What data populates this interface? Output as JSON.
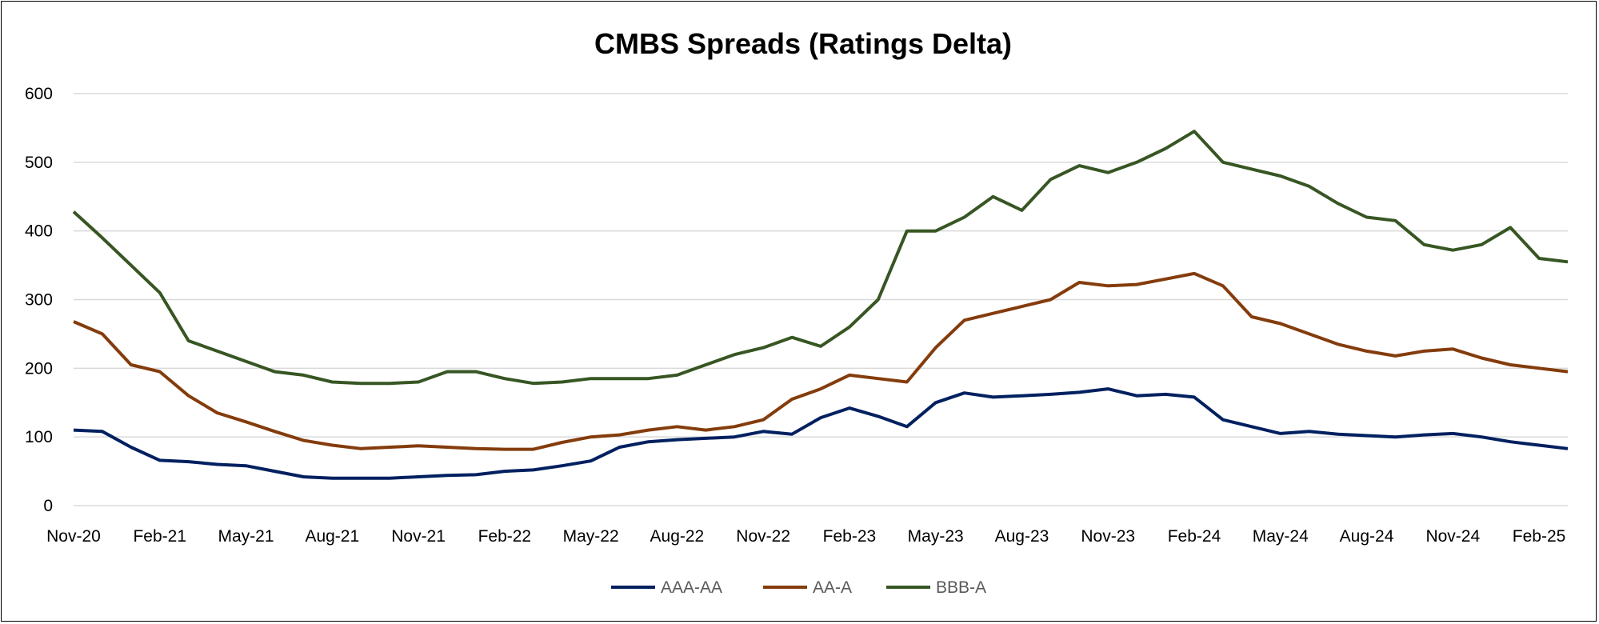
{
  "chart_data": {
    "type": "line",
    "title": "CMBS Spreads (Ratings Delta)",
    "xlabel": "",
    "ylabel": "",
    "ylim": [
      0,
      600
    ],
    "yticks": [
      0,
      100,
      200,
      300,
      400,
      500,
      600
    ],
    "x_ticks": [
      "Nov-20",
      "Feb-21",
      "May-21",
      "Aug-21",
      "Nov-21",
      "Feb-22",
      "May-22",
      "Aug-22",
      "Nov-22",
      "Feb-23",
      "May-23",
      "Aug-23",
      "Nov-23",
      "Feb-24",
      "May-24",
      "Aug-24",
      "Nov-24",
      "Feb-25"
    ],
    "grid": "horizontal",
    "legend_position": "bottom",
    "x": [
      "Nov-20",
      "Dec-20",
      "Jan-21",
      "Feb-21",
      "Mar-21",
      "Apr-21",
      "May-21",
      "Jun-21",
      "Jul-21",
      "Aug-21",
      "Sep-21",
      "Oct-21",
      "Nov-21",
      "Dec-21",
      "Jan-22",
      "Feb-22",
      "Mar-22",
      "Apr-22",
      "May-22",
      "Jun-22",
      "Jul-22",
      "Aug-22",
      "Sep-22",
      "Oct-22",
      "Nov-22",
      "Dec-22",
      "Jan-23",
      "Feb-23",
      "Mar-23",
      "Apr-23",
      "May-23",
      "Jun-23",
      "Jul-23",
      "Aug-23",
      "Sep-23",
      "Oct-23",
      "Nov-23",
      "Dec-23",
      "Jan-24",
      "Feb-24",
      "Mar-24",
      "Apr-24",
      "May-24",
      "Jun-24",
      "Jul-24",
      "Aug-24",
      "Sep-24",
      "Oct-24",
      "Nov-24",
      "Dec-24",
      "Jan-25",
      "Feb-25",
      "Mar-25"
    ],
    "series": [
      {
        "name": "AAA-AA",
        "color": "#002060",
        "values": [
          110,
          108,
          85,
          66,
          64,
          60,
          58,
          50,
          42,
          40,
          40,
          40,
          42,
          44,
          45,
          50,
          52,
          58,
          65,
          85,
          93,
          96,
          98,
          100,
          108,
          104,
          128,
          142,
          130,
          115,
          150,
          164,
          158,
          160,
          162,
          165,
          170,
          160,
          162,
          158,
          125,
          115,
          105,
          108,
          104,
          102,
          100,
          103,
          105,
          100,
          93,
          88,
          83
        ]
      },
      {
        "name": "AA-A",
        "color": "#843C0C",
        "values": [
          268,
          250,
          205,
          195,
          160,
          135,
          122,
          108,
          95,
          88,
          83,
          85,
          87,
          85,
          83,
          82,
          82,
          92,
          100,
          103,
          110,
          115,
          110,
          115,
          125,
          155,
          170,
          190,
          185,
          180,
          230,
          270,
          280,
          290,
          300,
          325,
          320,
          322,
          330,
          338,
          320,
          275,
          265,
          250,
          235,
          225,
          218,
          225,
          228,
          215,
          205,
          200,
          195
        ]
      },
      {
        "name": "BBB-A",
        "color": "#375623",
        "values": [
          428,
          390,
          350,
          310,
          240,
          225,
          210,
          195,
          190,
          180,
          178,
          178,
          180,
          195,
          195,
          185,
          178,
          180,
          185,
          185,
          185,
          190,
          205,
          220,
          230,
          245,
          232,
          260,
          300,
          400,
          400,
          420,
          450,
          430,
          475,
          495,
          485,
          500,
          520,
          545,
          500,
          490,
          480,
          465,
          440,
          420,
          415,
          380,
          372,
          380,
          405,
          360,
          355
        ]
      }
    ]
  }
}
